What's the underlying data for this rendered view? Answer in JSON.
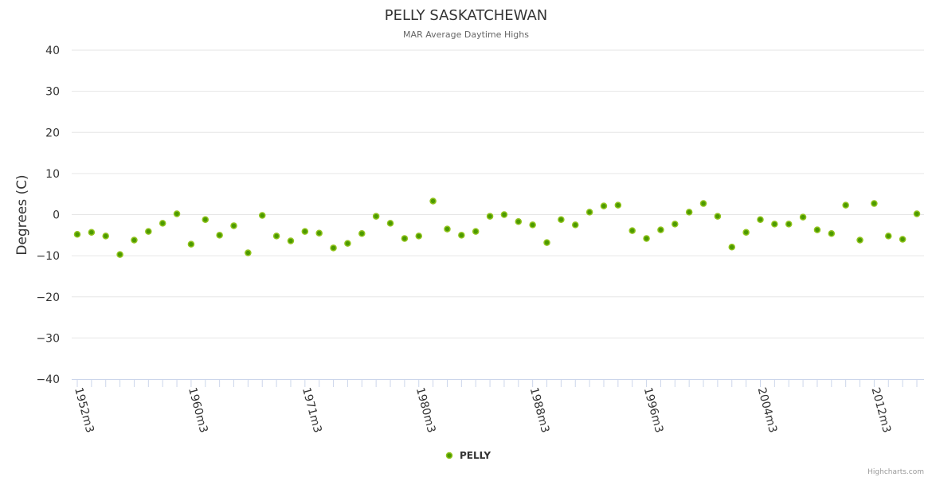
{
  "chart_data": {
    "type": "scatter",
    "title": "PELLY SASKATCHEWAN",
    "subtitle": "MAR Average Daytime Highs",
    "ylabel": "Degrees (C)",
    "xlabel": "",
    "ylim": [
      -40,
      40
    ],
    "yticks": [
      40,
      30,
      20,
      10,
      0,
      -10,
      -20,
      -30,
      -40
    ],
    "grid": true,
    "legend_placement": "bottom-center",
    "credits": "Highcharts.com",
    "xtick_labels": [
      "1952m3",
      "1960m3",
      "1971m3",
      "1980m3",
      "1988m3",
      "1996m3",
      "2004m3",
      "2012m3"
    ],
    "xtick_label_every": 8,
    "colors": {
      "marker_fill": "#4c9a00",
      "marker_stroke": "#90c31c",
      "grid": "#e6e6e6",
      "axis": "#ccd6eb",
      "title": "#333333"
    },
    "series": [
      {
        "name": "PELLY",
        "values": [
          -4.8,
          -4.3,
          -5.2,
          -9.7,
          -6.2,
          -4.1,
          -2.1,
          0.2,
          -7.2,
          -1.2,
          -5.0,
          -2.7,
          -9.3,
          -0.2,
          -5.2,
          -6.4,
          -4.1,
          -4.5,
          -8.1,
          -7.0,
          -4.6,
          -0.4,
          -2.1,
          -5.8,
          -5.2,
          3.3,
          -3.5,
          -5.0,
          -4.1,
          -0.4,
          0.0,
          -1.7,
          -2.5,
          -6.8,
          -1.2,
          -2.5,
          0.6,
          2.1,
          2.3,
          -3.9,
          -5.8,
          -3.7,
          -2.3,
          0.6,
          2.7,
          -0.4,
          -7.9,
          -4.3,
          -1.2,
          -2.3,
          -2.3,
          -0.6,
          -3.7,
          -4.6,
          2.3,
          -6.2,
          2.7,
          -5.2,
          -6.0,
          0.2
        ]
      }
    ]
  }
}
